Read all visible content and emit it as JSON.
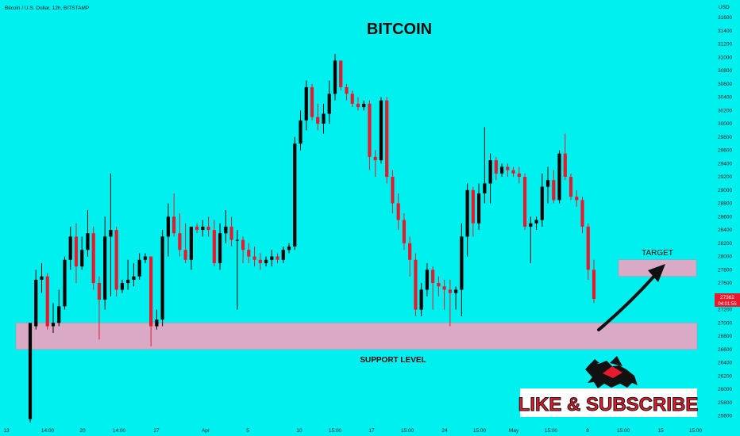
{
  "header": {
    "symbol_text": "Bitcoin / U.S. Dollar, 12h, BITSTAMP",
    "currency": "USD"
  },
  "price_tag": {
    "price": "27362",
    "countdown": "04:01:55"
  },
  "annotations": {
    "target_label": "TARGET",
    "support_label": "SUPPORT LEVEL"
  },
  "branding": {
    "cta": "LIKE & SUBSCRIBE"
  },
  "colors": {
    "background": "#00f0f0",
    "up_candle": "#000000",
    "down_candle": "#e8192c",
    "zone_fill": "#d9a9c6",
    "price_tag_bg": "#e8192c"
  },
  "chart_data": {
    "type": "candlestick",
    "title": "BITCOIN",
    "symbol": "Bitcoin / U.S. Dollar",
    "timeframe": "12h",
    "exchange": "BITSTAMP",
    "ylim": [
      25500,
      31600
    ],
    "y_ticks": [
      25600,
      25800,
      26000,
      26200,
      26400,
      26600,
      26800,
      27000,
      27200,
      27400,
      27600,
      27800,
      28000,
      28200,
      28400,
      28600,
      28800,
      29000,
      29200,
      29400,
      29600,
      29800,
      30000,
      30200,
      30400,
      30600,
      30800,
      31000,
      31200,
      31400,
      31600
    ],
    "x_labels": [
      "13",
      "14:00",
      "20",
      "14:00",
      "27",
      "Apr",
      "5",
      "10",
      "15:00",
      "17",
      "15:00",
      "24",
      "15:00",
      "May",
      "15:00",
      "8",
      "15:00",
      "15",
      "15:00"
    ],
    "candles": [
      {
        "o": 25550,
        "h": 26950,
        "l": 25500,
        "c": 27000
      },
      {
        "o": 26950,
        "h": 27800,
        "l": 26900,
        "c": 27650
      },
      {
        "o": 27650,
        "h": 27900,
        "l": 27450,
        "c": 27700
      },
      {
        "o": 27700,
        "h": 27750,
        "l": 26900,
        "c": 26950
      },
      {
        "o": 26950,
        "h": 27300,
        "l": 26850,
        "c": 27000
      },
      {
        "o": 27000,
        "h": 27500,
        "l": 26950,
        "c": 27250
      },
      {
        "o": 27250,
        "h": 28000,
        "l": 27200,
        "c": 27950
      },
      {
        "o": 27950,
        "h": 28450,
        "l": 27800,
        "c": 28300
      },
      {
        "o": 28300,
        "h": 28500,
        "l": 27600,
        "c": 27850
      },
      {
        "o": 27850,
        "h": 28300,
        "l": 27800,
        "c": 28100
      },
      {
        "o": 28100,
        "h": 28700,
        "l": 28000,
        "c": 28350
      },
      {
        "o": 28350,
        "h": 28450,
        "l": 27500,
        "c": 27600
      },
      {
        "o": 27600,
        "h": 27700,
        "l": 26750,
        "c": 27350
      },
      {
        "o": 27350,
        "h": 28600,
        "l": 27200,
        "c": 28300
      },
      {
        "o": 28300,
        "h": 29250,
        "l": 27400,
        "c": 28400
      },
      {
        "o": 28400,
        "h": 28450,
        "l": 27400,
        "c": 27500
      },
      {
        "o": 27500,
        "h": 27650,
        "l": 27450,
        "c": 27600
      },
      {
        "o": 27600,
        "h": 27950,
        "l": 27500,
        "c": 27650
      },
      {
        "o": 27650,
        "h": 27900,
        "l": 27550,
        "c": 27700
      },
      {
        "o": 27700,
        "h": 28050,
        "l": 27650,
        "c": 27950
      },
      {
        "o": 27950,
        "h": 28050,
        "l": 27900,
        "c": 28000
      },
      {
        "o": 28000,
        "h": 28000,
        "l": 26650,
        "c": 26950
      },
      {
        "o": 26950,
        "h": 27200,
        "l": 26900,
        "c": 27050
      },
      {
        "o": 27050,
        "h": 28400,
        "l": 26950,
        "c": 28300
      },
      {
        "o": 28300,
        "h": 28800,
        "l": 28000,
        "c": 28600
      },
      {
        "o": 28600,
        "h": 28950,
        "l": 28300,
        "c": 28350
      },
      {
        "o": 28350,
        "h": 28650,
        "l": 28000,
        "c": 28100
      },
      {
        "o": 28100,
        "h": 28500,
        "l": 27900,
        "c": 27950
      },
      {
        "o": 27950,
        "h": 28400,
        "l": 27800,
        "c": 28450
      },
      {
        "o": 28450,
        "h": 28500,
        "l": 28350,
        "c": 28400
      },
      {
        "o": 28400,
        "h": 28550,
        "l": 28300,
        "c": 28450
      },
      {
        "o": 28450,
        "h": 28600,
        "l": 28300,
        "c": 28400
      },
      {
        "o": 28400,
        "h": 28550,
        "l": 27850,
        "c": 27900
      },
      {
        "o": 27900,
        "h": 28500,
        "l": 27800,
        "c": 28350
      },
      {
        "o": 28350,
        "h": 28700,
        "l": 28200,
        "c": 28450
      },
      {
        "o": 28450,
        "h": 28600,
        "l": 28150,
        "c": 28250
      },
      {
        "o": 28250,
        "h": 28400,
        "l": 27200,
        "c": 28250
      },
      {
        "o": 28250,
        "h": 28300,
        "l": 27900,
        "c": 28100
      },
      {
        "o": 28100,
        "h": 28200,
        "l": 27900,
        "c": 28000
      },
      {
        "o": 28000,
        "h": 28150,
        "l": 27850,
        "c": 27950
      },
      {
        "o": 27950,
        "h": 28050,
        "l": 27800,
        "c": 27900
      },
      {
        "o": 27900,
        "h": 28000,
        "l": 27850,
        "c": 27950
      },
      {
        "o": 27950,
        "h": 28100,
        "l": 27850,
        "c": 28000
      },
      {
        "o": 28000,
        "h": 28050,
        "l": 27900,
        "c": 27950
      },
      {
        "o": 27950,
        "h": 28150,
        "l": 27900,
        "c": 28100
      },
      {
        "o": 28100,
        "h": 28200,
        "l": 28050,
        "c": 28150
      },
      {
        "o": 28150,
        "h": 29800,
        "l": 28100,
        "c": 29700
      },
      {
        "o": 29700,
        "h": 30200,
        "l": 29600,
        "c": 30050
      },
      {
        "o": 30050,
        "h": 30650,
        "l": 29900,
        "c": 30550
      },
      {
        "o": 30550,
        "h": 30600,
        "l": 30050,
        "c": 30100
      },
      {
        "o": 30100,
        "h": 30300,
        "l": 29900,
        "c": 30000
      },
      {
        "o": 30000,
        "h": 30300,
        "l": 29850,
        "c": 30150
      },
      {
        "o": 30150,
        "h": 30650,
        "l": 30000,
        "c": 30450
      },
      {
        "o": 30450,
        "h": 31050,
        "l": 30350,
        "c": 30950
      },
      {
        "o": 30950,
        "h": 30950,
        "l": 30500,
        "c": 30550
      },
      {
        "o": 30550,
        "h": 30600,
        "l": 30350,
        "c": 30450
      },
      {
        "o": 30450,
        "h": 30500,
        "l": 30250,
        "c": 30300
      },
      {
        "o": 30300,
        "h": 30400,
        "l": 30200,
        "c": 30250
      },
      {
        "o": 30250,
        "h": 30350,
        "l": 30200,
        "c": 30300
      },
      {
        "o": 30300,
        "h": 30350,
        "l": 29300,
        "c": 29500
      },
      {
        "o": 29500,
        "h": 29600,
        "l": 29200,
        "c": 29450
      },
      {
        "o": 29450,
        "h": 30400,
        "l": 29400,
        "c": 30350
      },
      {
        "o": 30350,
        "h": 30400,
        "l": 29100,
        "c": 29200
      },
      {
        "o": 29200,
        "h": 29300,
        "l": 28650,
        "c": 28800
      },
      {
        "o": 28800,
        "h": 28950,
        "l": 28400,
        "c": 28550
      },
      {
        "o": 28550,
        "h": 28650,
        "l": 28100,
        "c": 28200
      },
      {
        "o": 28200,
        "h": 28300,
        "l": 27700,
        "c": 27950
      },
      {
        "o": 27950,
        "h": 28050,
        "l": 27100,
        "c": 27200
      },
      {
        "o": 27200,
        "h": 27600,
        "l": 27100,
        "c": 27500
      },
      {
        "o": 27500,
        "h": 27900,
        "l": 27400,
        "c": 27800
      },
      {
        "o": 27800,
        "h": 27850,
        "l": 27200,
        "c": 27600
      },
      {
        "o": 27600,
        "h": 27700,
        "l": 27400,
        "c": 27550
      },
      {
        "o": 27550,
        "h": 27650,
        "l": 27200,
        "c": 27500
      },
      {
        "o": 27500,
        "h": 27650,
        "l": 26950,
        "c": 27450
      },
      {
        "o": 27450,
        "h": 27550,
        "l": 27200,
        "c": 27500
      },
      {
        "o": 27500,
        "h": 28500,
        "l": 27100,
        "c": 28300
      },
      {
        "o": 28300,
        "h": 29100,
        "l": 28000,
        "c": 29000
      },
      {
        "o": 29000,
        "h": 29050,
        "l": 28300,
        "c": 28500
      },
      {
        "o": 28500,
        "h": 29100,
        "l": 28400,
        "c": 28950
      },
      {
        "o": 28950,
        "h": 29950,
        "l": 28800,
        "c": 29100
      },
      {
        "o": 29100,
        "h": 29550,
        "l": 28800,
        "c": 29450
      },
      {
        "o": 29450,
        "h": 29500,
        "l": 29150,
        "c": 29250
      },
      {
        "o": 29250,
        "h": 29400,
        "l": 29200,
        "c": 29350
      },
      {
        "o": 29350,
        "h": 29400,
        "l": 29200,
        "c": 29300
      },
      {
        "o": 29300,
        "h": 29350,
        "l": 29200,
        "c": 29250
      },
      {
        "o": 29250,
        "h": 29350,
        "l": 29100,
        "c": 29200
      },
      {
        "o": 29200,
        "h": 29250,
        "l": 28400,
        "c": 28450
      },
      {
        "o": 28450,
        "h": 28600,
        "l": 27900,
        "c": 28500
      },
      {
        "o": 28500,
        "h": 28600,
        "l": 28400,
        "c": 28550
      },
      {
        "o": 28550,
        "h": 29250,
        "l": 28450,
        "c": 29050
      },
      {
        "o": 29050,
        "h": 29350,
        "l": 28800,
        "c": 29150
      },
      {
        "o": 29150,
        "h": 29300,
        "l": 28800,
        "c": 28850
      },
      {
        "o": 28850,
        "h": 29600,
        "l": 28800,
        "c": 29550
      },
      {
        "o": 29550,
        "h": 29850,
        "l": 29150,
        "c": 29200
      },
      {
        "o": 29200,
        "h": 29250,
        "l": 28850,
        "c": 28900
      },
      {
        "o": 28900,
        "h": 29000,
        "l": 28750,
        "c": 28850
      },
      {
        "o": 28850,
        "h": 28900,
        "l": 28350,
        "c": 28450
      },
      {
        "o": 28450,
        "h": 28500,
        "l": 27650,
        "c": 27800
      },
      {
        "o": 27800,
        "h": 27950,
        "l": 27300,
        "c": 27362
      }
    ],
    "zones": [
      {
        "name": "SUPPORT LEVEL",
        "from": 26600,
        "to": 27000
      },
      {
        "name": "TARGET",
        "from": 27700,
        "to": 27950
      }
    ],
    "arrow": {
      "from_price": 26950,
      "to_price": 27800
    },
    "grid": false,
    "legend": "none"
  }
}
